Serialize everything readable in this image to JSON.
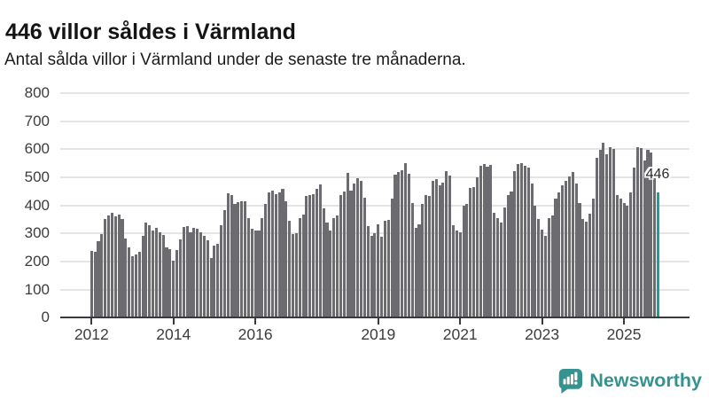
{
  "header": {
    "title": "446 villor såldes i Värmland",
    "subtitle": "Antal sålda villor i Värmland under de senaste tre månaderna."
  },
  "chart_data": {
    "type": "bar",
    "title": "446 villor såldes i Värmland",
    "subtitle": "Antal sålda villor i Värmland under de senaste tre månaderna.",
    "xlabel": "",
    "ylabel": "",
    "x_months": {
      "start": "2012-01",
      "end": "2025-11",
      "count": 167
    },
    "values": [
      238,
      234,
      272,
      299,
      351,
      364,
      375,
      362,
      368,
      350,
      283,
      252,
      220,
      225,
      236,
      293,
      340,
      330,
      309,
      320,
      304,
      296,
      250,
      243,
      204,
      241,
      278,
      323,
      325,
      304,
      320,
      318,
      304,
      290,
      276,
      213,
      257,
      262,
      330,
      383,
      443,
      437,
      406,
      412,
      416,
      414,
      356,
      318,
      312,
      312,
      356,
      406,
      445,
      452,
      440,
      445,
      458,
      414,
      344,
      299,
      301,
      354,
      367,
      433,
      438,
      440,
      459,
      475,
      391,
      338,
      312,
      354,
      363,
      436,
      449,
      515,
      454,
      478,
      496,
      486,
      426,
      325,
      291,
      301,
      333,
      288,
      346,
      349,
      424,
      508,
      519,
      524,
      552,
      514,
      409,
      320,
      332,
      404,
      437,
      435,
      487,
      493,
      472,
      482,
      521,
      506,
      330,
      311,
      304,
      398,
      405,
      461,
      465,
      500,
      542,
      548,
      538,
      545,
      374,
      356,
      340,
      393,
      437,
      450,
      521,
      548,
      550,
      542,
      535,
      477,
      398,
      351,
      314,
      293,
      356,
      364,
      425,
      446,
      472,
      487,
      503,
      519,
      477,
      409,
      351,
      343,
      372,
      424,
      569,
      597,
      624,
      582,
      608,
      601,
      437,
      424,
      409,
      398,
      446,
      535,
      608,
      603,
      561,
      597,
      587,
      496,
      446
    ],
    "ylim": [
      0,
      800
    ],
    "yticks": [
      0,
      100,
      200,
      300,
      400,
      500,
      600,
      700,
      800
    ],
    "xticks": [
      {
        "label": "2012",
        "month_index": 0
      },
      {
        "label": "2014",
        "month_index": 24
      },
      {
        "label": "2016",
        "month_index": 48
      },
      {
        "label": "2019",
        "month_index": 84
      },
      {
        "label": "2021",
        "month_index": 108
      },
      {
        "label": "2023",
        "month_index": 132
      },
      {
        "label": "2025",
        "month_index": 156
      }
    ],
    "grid": true,
    "legend": "none",
    "bar_color": "#6b6b70",
    "grid_color": "#e4e4e4",
    "axis_color": "#3a3a3a",
    "highlight": {
      "month": "2025-11",
      "index": 166,
      "value": 446,
      "label": "446",
      "color": "#1b9e9e"
    }
  },
  "footer": {
    "brand": "Newsworthy",
    "brand_color": "#35938f",
    "logo_icon": "newsworthy-bar-chart-bubble-icon"
  }
}
